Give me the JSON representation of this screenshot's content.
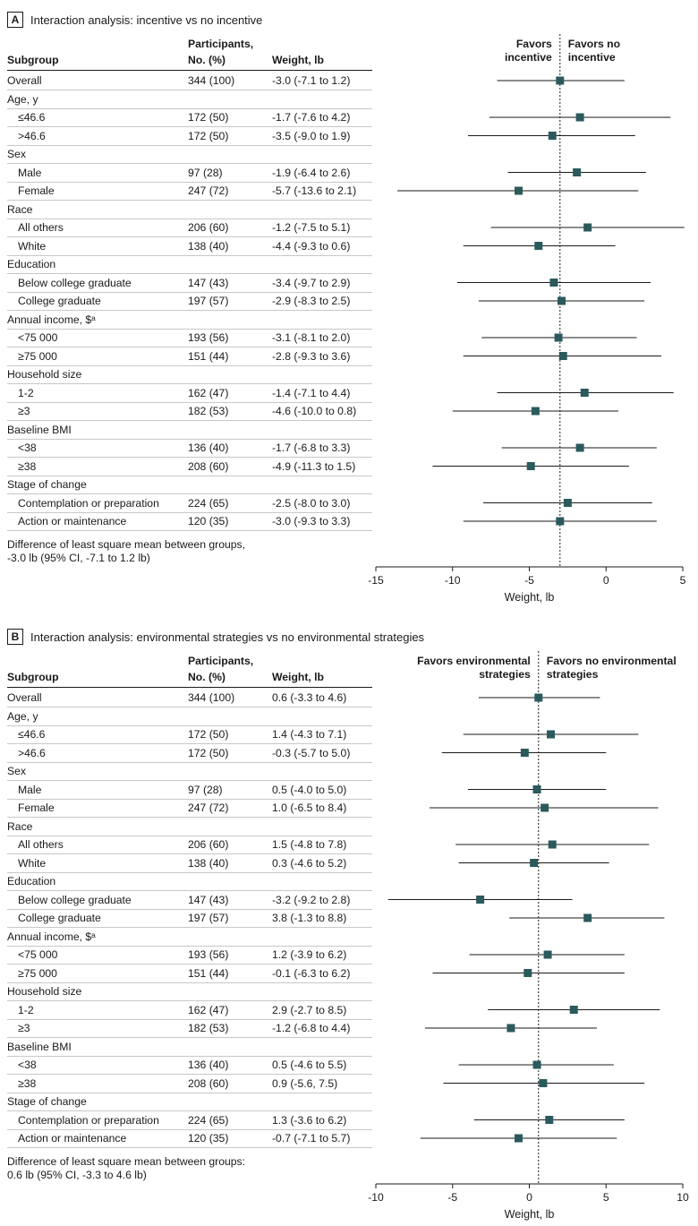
{
  "panels": [
    {
      "letter": "A",
      "title": "Interaction analysis: incentive vs no incentive",
      "headers": {
        "subgroup": "Subgroup",
        "participants_line1": "Participants,",
        "participants_line2": "No. (%)",
        "weight": "Weight, lb"
      },
      "favors_left": [
        "Favors",
        "incentive"
      ],
      "favors_right": [
        "Favors no",
        "incentive"
      ],
      "footnote": [
        "Difference of least square mean between groups,",
        "-3.0 lb (95% CI, -7.1 to 1.2 lb)"
      ],
      "rows": [
        {
          "label": "Overall",
          "indent": false,
          "header": false,
          "participants": "344 (100)",
          "weight": "-3.0 (-7.1 to 1.2)"
        },
        {
          "label": "Age, y",
          "indent": false,
          "header": true
        },
        {
          "label": "≤46.6",
          "indent": true,
          "header": false,
          "participants": "172 (50)",
          "weight": "-1.7 (-7.6 to 4.2)"
        },
        {
          "label": ">46.6",
          "indent": true,
          "header": false,
          "participants": "172 (50)",
          "weight": "-3.5 (-9.0 to 1.9)"
        },
        {
          "label": "Sex",
          "indent": false,
          "header": true
        },
        {
          "label": "Male",
          "indent": true,
          "header": false,
          "participants": "97 (28)",
          "weight": "-1.9 (-6.4 to 2.6)"
        },
        {
          "label": "Female",
          "indent": true,
          "header": false,
          "participants": "247 (72)",
          "weight": "-5.7 (-13.6 to 2.1)"
        },
        {
          "label": "Race",
          "indent": false,
          "header": true
        },
        {
          "label": "All others",
          "indent": true,
          "header": false,
          "participants": "206 (60)",
          "weight": "-1.2 (-7.5 to 5.1)"
        },
        {
          "label": "White",
          "indent": true,
          "header": false,
          "participants": "138 (40)",
          "weight": "-4.4 (-9.3 to 0.6)"
        },
        {
          "label": "Education",
          "indent": false,
          "header": true
        },
        {
          "label": "Below college graduate",
          "indent": true,
          "header": false,
          "participants": "147 (43)",
          "weight": "-3.4 (-9.7 to 2.9)"
        },
        {
          "label": "College graduate",
          "indent": true,
          "header": false,
          "participants": "197 (57)",
          "weight": "-2.9 (-8.3 to 2.5)"
        },
        {
          "label": "Annual income, $ᵃ",
          "indent": false,
          "header": true
        },
        {
          "label": "<75 000",
          "indent": true,
          "header": false,
          "participants": "193 (56)",
          "weight": "-3.1 (-8.1 to 2.0)"
        },
        {
          "label": "≥75 000",
          "indent": true,
          "header": false,
          "participants": "151 (44)",
          "weight": "-2.8 (-9.3 to 3.6)"
        },
        {
          "label": "Household size",
          "indent": false,
          "header": true
        },
        {
          "label": "1-2",
          "indent": true,
          "header": false,
          "participants": "162 (47)",
          "weight": "-1.4 (-7.1 to 4.4)"
        },
        {
          "label": "≥3",
          "indent": true,
          "header": false,
          "participants": "182 (53)",
          "weight": "-4.6 (-10.0 to 0.8)"
        },
        {
          "label": "Baseline BMI",
          "indent": false,
          "header": true
        },
        {
          "label": "<38",
          "indent": true,
          "header": false,
          "participants": "136 (40)",
          "weight": "-1.7 (-6.8 to 3.3)"
        },
        {
          "label": "≥38",
          "indent": true,
          "header": false,
          "participants": "208 (60)",
          "weight": "-4.9 (-11.3 to 1.5)"
        },
        {
          "label": "Stage of change",
          "indent": false,
          "header": true
        },
        {
          "label": "Contemplation or preparation",
          "indent": true,
          "header": false,
          "participants": "224 (65)",
          "weight": "-2.5 (-8.0 to 3.0)"
        },
        {
          "label": "Action or maintenance",
          "indent": true,
          "header": false,
          "participants": "120 (35)",
          "weight": "-3.0 (-9.3 to 3.3)"
        }
      ]
    },
    {
      "letter": "B",
      "title": "Interaction analysis: environmental strategies vs no environmental strategies",
      "headers": {
        "subgroup": "Subgroup",
        "participants_line1": "Participants,",
        "participants_line2": "No. (%)",
        "weight": "Weight, lb"
      },
      "favors_left": [
        "Favors environmental",
        "strategies"
      ],
      "favors_right": [
        "Favors no environmental",
        "strategies"
      ],
      "footnote": [
        "Difference of least square mean between groups:",
        "0.6 lb (95% CI, -3.3 to 4.6 lb)"
      ],
      "rows": [
        {
          "label": "Overall",
          "indent": false,
          "header": false,
          "participants": "344 (100)",
          "weight": "0.6 (-3.3 to 4.6)"
        },
        {
          "label": "Age, y",
          "indent": false,
          "header": true
        },
        {
          "label": "≤46.6",
          "indent": true,
          "header": false,
          "participants": "172 (50)",
          "weight": "1.4 (-4.3 to 7.1)"
        },
        {
          "label": ">46.6",
          "indent": true,
          "header": false,
          "participants": "172 (50)",
          "weight": "-0.3 (-5.7 to 5.0)"
        },
        {
          "label": "Sex",
          "indent": false,
          "header": true
        },
        {
          "label": "Male",
          "indent": true,
          "header": false,
          "participants": "97 (28)",
          "weight": "0.5 (-4.0 to 5.0)"
        },
        {
          "label": "Female",
          "indent": true,
          "header": false,
          "participants": "247 (72)",
          "weight": "1.0 (-6.5 to 8.4)"
        },
        {
          "label": "Race",
          "indent": false,
          "header": true
        },
        {
          "label": "All others",
          "indent": true,
          "header": false,
          "participants": "206 (60)",
          "weight": "1.5 (-4.8 to 7.8)"
        },
        {
          "label": "White",
          "indent": true,
          "header": false,
          "participants": "138 (40)",
          "weight": "0.3 (-4.6 to 5.2)"
        },
        {
          "label": "Education",
          "indent": false,
          "header": true
        },
        {
          "label": "Below college graduate",
          "indent": true,
          "header": false,
          "participants": "147 (43)",
          "weight": "-3.2 (-9.2 to 2.8)"
        },
        {
          "label": "College graduate",
          "indent": true,
          "header": false,
          "participants": "197 (57)",
          "weight": "3.8 (-1.3 to 8.8)"
        },
        {
          "label": "Annual income, $ᵃ",
          "indent": false,
          "header": true
        },
        {
          "label": "<75 000",
          "indent": true,
          "header": false,
          "participants": "193 (56)",
          "weight": "1.2 (-3.9 to 6.2)"
        },
        {
          "label": "≥75 000",
          "indent": true,
          "header": false,
          "participants": "151 (44)",
          "weight": "-0.1 (-6.3 to 6.2)"
        },
        {
          "label": "Household size",
          "indent": false,
          "header": true
        },
        {
          "label": "1-2",
          "indent": true,
          "header": false,
          "participants": "162 (47)",
          "weight": "2.9 (-2.7 to 8.5)"
        },
        {
          "label": "≥3",
          "indent": true,
          "header": false,
          "participants": "182 (53)",
          "weight": "-1.2 (-6.8 to 4.4)"
        },
        {
          "label": "Baseline BMI",
          "indent": false,
          "header": true
        },
        {
          "label": "<38",
          "indent": true,
          "header": false,
          "participants": "136 (40)",
          "weight": "0.5 (-4.6 to 5.5)"
        },
        {
          "label": "≥38",
          "indent": true,
          "header": false,
          "participants": "208 (60)",
          "weight": "0.9 (-5.6, 7.5)"
        },
        {
          "label": "Stage of change",
          "indent": false,
          "header": true
        },
        {
          "label": "Contemplation or preparation",
          "indent": true,
          "header": false,
          "participants": "224 (65)",
          "weight": "1.3 (-3.6 to 6.2)"
        },
        {
          "label": "Action or maintenance",
          "indent": true,
          "header": false,
          "participants": "120 (35)",
          "weight": "-0.7 (-7.1 to 5.7)"
        }
      ]
    }
  ],
  "chart_data": [
    {
      "type": "forest",
      "title": "Interaction analysis: incentive vs no incentive",
      "xlabel": "Weight, lb",
      "xlim": [
        -15,
        5
      ],
      "xticks": [
        -15,
        -10,
        -5,
        0,
        5
      ],
      "reference_line": -3.0,
      "marker_color": "#2b5a5c",
      "points": [
        {
          "label": "Overall",
          "est": -3.0,
          "lo": -7.1,
          "hi": 1.2
        },
        {
          "label": "≤46.6",
          "est": -1.7,
          "lo": -7.6,
          "hi": 4.2
        },
        {
          "label": ">46.6",
          "est": -3.5,
          "lo": -9.0,
          "hi": 1.9
        },
        {
          "label": "Male",
          "est": -1.9,
          "lo": -6.4,
          "hi": 2.6
        },
        {
          "label": "Female",
          "est": -5.7,
          "lo": -13.6,
          "hi": 2.1
        },
        {
          "label": "All others",
          "est": -1.2,
          "lo": -7.5,
          "hi": 5.1
        },
        {
          "label": "White",
          "est": -4.4,
          "lo": -9.3,
          "hi": 0.6
        },
        {
          "label": "Below college graduate",
          "est": -3.4,
          "lo": -9.7,
          "hi": 2.9
        },
        {
          "label": "College graduate",
          "est": -2.9,
          "lo": -8.3,
          "hi": 2.5
        },
        {
          "label": "<75 000",
          "est": -3.1,
          "lo": -8.1,
          "hi": 2.0
        },
        {
          "label": "≥75 000",
          "est": -2.8,
          "lo": -9.3,
          "hi": 3.6
        },
        {
          "label": "1-2",
          "est": -1.4,
          "lo": -7.1,
          "hi": 4.4
        },
        {
          "label": "≥3",
          "est": -4.6,
          "lo": -10.0,
          "hi": 0.8
        },
        {
          "label": "<38",
          "est": -1.7,
          "lo": -6.8,
          "hi": 3.3
        },
        {
          "label": "≥38",
          "est": -4.9,
          "lo": -11.3,
          "hi": 1.5
        },
        {
          "label": "Contemplation or preparation",
          "est": -2.5,
          "lo": -8.0,
          "hi": 3.0
        },
        {
          "label": "Action or maintenance",
          "est": -3.0,
          "lo": -9.3,
          "hi": 3.3
        }
      ]
    },
    {
      "type": "forest",
      "title": "Interaction analysis: environmental strategies vs no environmental strategies",
      "xlabel": "Weight, lb",
      "xlim": [
        -10,
        10
      ],
      "xticks": [
        -10,
        -5,
        0,
        5,
        10
      ],
      "reference_line": 0.6,
      "marker_color": "#2b5a5c",
      "points": [
        {
          "label": "Overall",
          "est": 0.6,
          "lo": -3.3,
          "hi": 4.6
        },
        {
          "label": "≤46.6",
          "est": 1.4,
          "lo": -4.3,
          "hi": 7.1
        },
        {
          "label": ">46.6",
          "est": -0.3,
          "lo": -5.7,
          "hi": 5.0
        },
        {
          "label": "Male",
          "est": 0.5,
          "lo": -4.0,
          "hi": 5.0
        },
        {
          "label": "Female",
          "est": 1.0,
          "lo": -6.5,
          "hi": 8.4
        },
        {
          "label": "All others",
          "est": 1.5,
          "lo": -4.8,
          "hi": 7.8
        },
        {
          "label": "White",
          "est": 0.3,
          "lo": -4.6,
          "hi": 5.2
        },
        {
          "label": "Below college graduate",
          "est": -3.2,
          "lo": -9.2,
          "hi": 2.8
        },
        {
          "label": "College graduate",
          "est": 3.8,
          "lo": -1.3,
          "hi": 8.8
        },
        {
          "label": "<75 000",
          "est": 1.2,
          "lo": -3.9,
          "hi": 6.2
        },
        {
          "label": "≥75 000",
          "est": -0.1,
          "lo": -6.3,
          "hi": 6.2
        },
        {
          "label": "1-2",
          "est": 2.9,
          "lo": -2.7,
          "hi": 8.5
        },
        {
          "label": "≥3",
          "est": -1.2,
          "lo": -6.8,
          "hi": 4.4
        },
        {
          "label": "<38",
          "est": 0.5,
          "lo": -4.6,
          "hi": 5.5
        },
        {
          "label": "≥38",
          "est": 0.9,
          "lo": -5.6,
          "hi": 7.5
        },
        {
          "label": "Contemplation or preparation",
          "est": 1.3,
          "lo": -3.6,
          "hi": 6.2
        },
        {
          "label": "Action or maintenance",
          "est": -0.7,
          "lo": -7.1,
          "hi": 5.7
        }
      ]
    }
  ]
}
